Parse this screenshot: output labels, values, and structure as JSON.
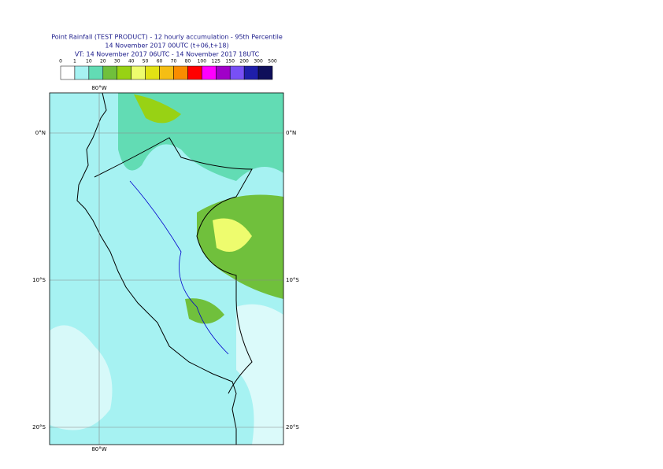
{
  "header": {
    "title": "Point Rainfall (TEST PRODUCT) - 12 hourly accumulation - 95th Percentile",
    "line2": "14 November 2017 00UTC (t+06,t+18)",
    "line3": "VT: 14 November 2017 06UTC - 14 November 2017 18UTC"
  },
  "legend": {
    "ticks": [
      "0",
      "1",
      "10",
      "20",
      "30",
      "40",
      "50",
      "60",
      "70",
      "80",
      "100",
      "125",
      "150",
      "200",
      "300",
      "500"
    ],
    "colors": [
      "#ffffff",
      "#a6f2f2",
      "#62dcb4",
      "#70c03c",
      "#98d214",
      "#eefc6e",
      "#e2e214",
      "#f5be14",
      "#fa8c00",
      "#ff0000",
      "#ff00ff",
      "#a000c8",
      "#7850f5",
      "#1e1eaa",
      "#0f0f5a"
    ]
  },
  "map": {
    "lon_top": "80°W",
    "lon_bottom": "80°W",
    "lat_0_left": "0°N",
    "lat_0_right": "0°N",
    "lat_10_left": "10°S",
    "lat_10_right": "10°S",
    "lat_20_left": "20°S",
    "lat_20_right": "20°S"
  }
}
